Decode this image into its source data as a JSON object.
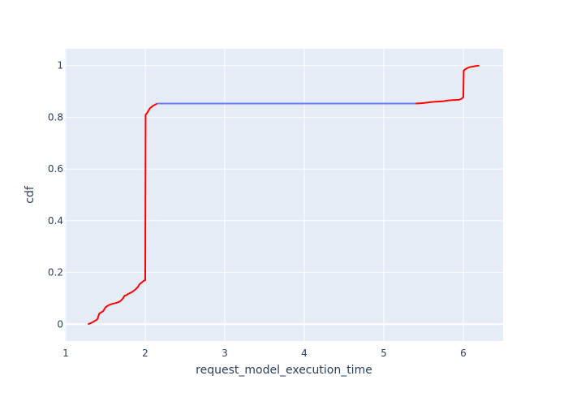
{
  "chart_data": {
    "type": "line",
    "title": "",
    "xlabel": "request_model_execution_time",
    "ylabel": "cdf",
    "xlim": [
      0.99,
      6.5
    ],
    "ylim": [
      -0.065,
      1.065
    ],
    "x_ticks": [
      1,
      2,
      3,
      4,
      5,
      6
    ],
    "y_ticks": [
      0,
      0.2,
      0.4,
      0.6,
      0.8,
      1
    ],
    "grid": true,
    "colors": {
      "plot_bg": "#e5ecf6",
      "grid": "#ffffff",
      "text": "#2a3f5f"
    },
    "series": [
      {
        "color": "#ff0000",
        "x": [
          1.28,
          1.32,
          1.35,
          1.38,
          1.4,
          1.42,
          1.44,
          1.47,
          1.5,
          1.52,
          1.55,
          1.58,
          1.6,
          1.63,
          1.66,
          1.69,
          1.72,
          1.74,
          1.76,
          1.79,
          1.82,
          1.85,
          1.88,
          1.91,
          1.93,
          1.95,
          1.97,
          1.98,
          2.0,
          2.005,
          2.01,
          2.02,
          2.04,
          2.06,
          2.08,
          2.1,
          2.12,
          2.15
        ],
        "y": [
          0.0,
          0.005,
          0.01,
          0.015,
          0.02,
          0.04,
          0.045,
          0.05,
          0.065,
          0.07,
          0.075,
          0.078,
          0.08,
          0.082,
          0.085,
          0.09,
          0.1,
          0.11,
          0.112,
          0.118,
          0.122,
          0.128,
          0.135,
          0.145,
          0.155,
          0.16,
          0.165,
          0.168,
          0.17,
          0.81,
          0.812,
          0.815,
          0.825,
          0.835,
          0.84,
          0.845,
          0.848,
          0.853
        ]
      },
      {
        "color": "#6b7bff",
        "x": [
          2.15,
          5.4
        ],
        "y": [
          0.853,
          0.853
        ]
      },
      {
        "color": "#ff0000",
        "x": [
          5.4,
          5.45,
          5.5,
          5.55,
          5.6,
          5.65,
          5.7,
          5.75,
          5.8,
          5.85,
          5.9,
          5.95,
          5.98,
          6.0,
          6.005,
          6.02,
          6.05,
          6.08,
          6.12,
          6.15,
          6.2
        ],
        "y": [
          0.853,
          0.854,
          0.855,
          0.857,
          0.859,
          0.86,
          0.861,
          0.862,
          0.865,
          0.866,
          0.867,
          0.868,
          0.872,
          0.878,
          0.98,
          0.985,
          0.99,
          0.994,
          0.996,
          0.998,
          1.0
        ]
      }
    ]
  }
}
